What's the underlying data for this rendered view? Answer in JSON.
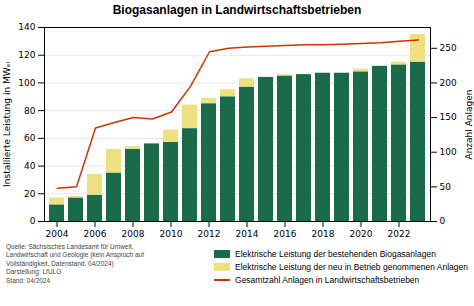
{
  "chart_data": {
    "type": "bar",
    "title": "Biogasanlagen in Landwirtschaftsbetrieben",
    "stacked": true,
    "grid": true,
    "legend": "lower right",
    "categories": [
      "2004",
      null,
      "2006",
      null,
      "2008",
      null,
      "2010",
      null,
      "2012",
      null,
      "2014",
      null,
      "2016",
      null,
      "2018",
      null,
      "2020",
      null,
      "2022",
      null
    ],
    "ylabel": "Installierte Leistung in MWₑₗ",
    "y2label": "Anzahl Anlagen",
    "ylim": [
      0,
      140
    ],
    "yticks": [
      0,
      20,
      40,
      60,
      80,
      100,
      120,
      140
    ],
    "y2lim": [
      0,
      280
    ],
    "y2ticks": [
      0,
      50,
      100,
      150,
      200,
      250
    ],
    "series": [
      {
        "name": "Elektrische Leistung der bestehenden Biogasanlagen",
        "color": "#1a6b4a",
        "values": [
          12,
          17,
          19,
          35,
          52,
          56,
          57,
          67,
          85,
          90,
          97,
          104,
          105,
          106,
          107,
          107,
          108,
          112,
          113,
          115
        ]
      },
      {
        "name": "Elektrische Leistung der neu in Betrieb genommenen Anlagen",
        "color": "#ede080",
        "values": [
          5,
          1,
          15,
          17,
          2,
          0,
          9,
          17,
          4,
          5,
          6,
          0,
          1,
          0,
          0,
          0,
          2,
          0,
          2,
          20
        ]
      },
      {
        "name": "Gesamtzahl Anlagen in Landwirtschaftsbetrieben",
        "type": "line",
        "axis": "y2",
        "color": "#cc3300",
        "values": [
          48,
          50,
          135,
          143,
          150,
          148,
          158,
          195,
          245,
          250,
          252,
          253,
          254,
          255,
          255,
          256,
          257,
          258,
          260,
          262
        ]
      }
    ],
    "annotations": [
      "Quelle: Sächsisches Landesamt für Umwelt,\nLandwirtschaft und Geologie (kein Anspruch auf\nVollständigkeit. Datenstand: 04/2024)\nDarstellung: LfULG\nStand: 04/2024"
    ]
  }
}
